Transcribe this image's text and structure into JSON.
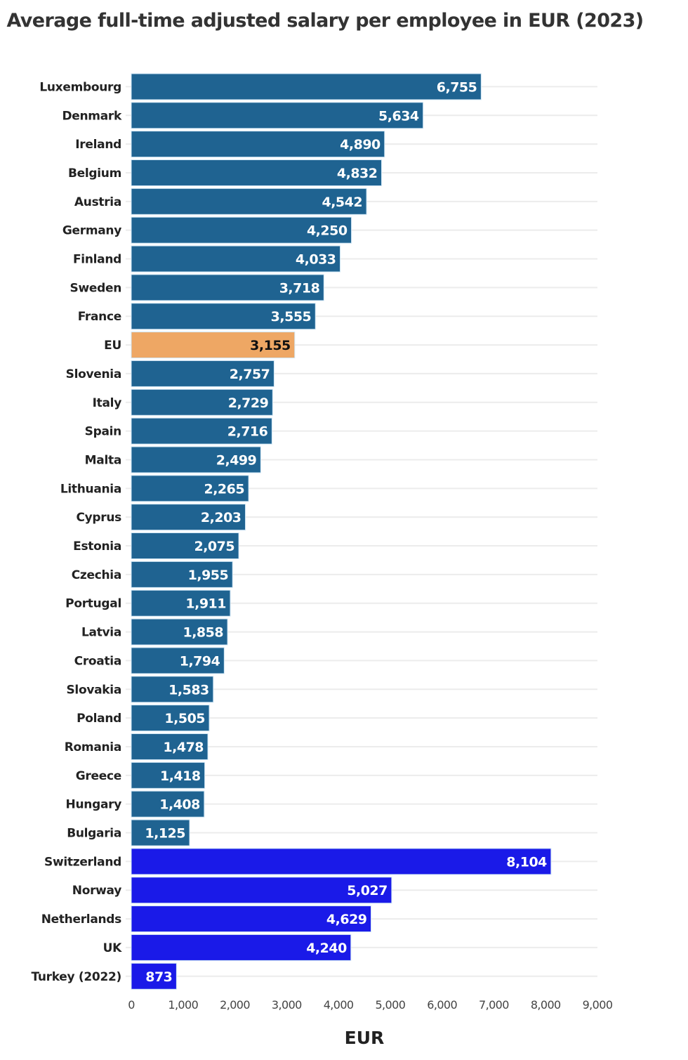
{
  "chart_data": {
    "type": "bar",
    "orientation": "horizontal",
    "title": "Average full-time adjusted salary per employee in EUR (2023)",
    "xlabel": "EUR",
    "ylabel": "",
    "xlim": [
      0,
      9000
    ],
    "xticks": [
      0,
      1000,
      2000,
      3000,
      4000,
      5000,
      6000,
      7000,
      8000,
      9000
    ],
    "xtick_labels": [
      "0",
      "1,000",
      "2,000",
      "3,000",
      "4,000",
      "5,000",
      "6,000",
      "7,000",
      "8,000",
      "9,000"
    ],
    "grid": "vertical-off horizontal-row-lines",
    "legend": "none",
    "colors": {
      "eu_member": "#1f6391",
      "eu_average": "#eea764",
      "non_eu": "#1a1ae8"
    },
    "categories": [
      "Luxembourg",
      "Denmark",
      "Ireland",
      "Belgium",
      "Austria",
      "Germany",
      "Finland",
      "Sweden",
      "France",
      "EU",
      "Slovenia",
      "Italy",
      "Spain",
      "Malta",
      "Lithuania",
      "Cyprus",
      "Estonia",
      "Czechia",
      "Portugal",
      "Latvia",
      "Croatia",
      "Slovakia",
      "Poland",
      "Romania",
      "Greece",
      "Hungary",
      "Bulgaria",
      "Switzerland",
      "Norway",
      "Netherlands",
      "UK",
      "Turkey (2022)"
    ],
    "values": [
      6755,
      5634,
      4890,
      4832,
      4542,
      4250,
      4033,
      3718,
      3555,
      3155,
      2757,
      2729,
      2716,
      2499,
      2265,
      2203,
      2075,
      1955,
      1911,
      1858,
      1794,
      1583,
      1505,
      1478,
      1418,
      1408,
      1125,
      8104,
      5027,
      4629,
      4240,
      873
    ],
    "value_labels": [
      "6,755",
      "5,634",
      "4,890",
      "4,832",
      "4,542",
      "4,250",
      "4,033",
      "3,718",
      "3,555",
      "3,155",
      "2,757",
      "2,729",
      "2,716",
      "2,499",
      "2,265",
      "2,203",
      "2,075",
      "1,955",
      "1,911",
      "1,858",
      "1,794",
      "1,583",
      "1,505",
      "1,478",
      "1,418",
      "1,408",
      "1,125",
      "8,104",
      "5,027",
      "4,629",
      "4,240",
      "873"
    ],
    "groups": [
      "eu_member",
      "eu_member",
      "eu_member",
      "eu_member",
      "eu_member",
      "eu_member",
      "eu_member",
      "eu_member",
      "eu_member",
      "eu_average",
      "eu_member",
      "eu_member",
      "eu_member",
      "eu_member",
      "eu_member",
      "eu_member",
      "eu_member",
      "eu_member",
      "eu_member",
      "eu_member",
      "eu_member",
      "eu_member",
      "eu_member",
      "eu_member",
      "eu_member",
      "eu_member",
      "eu_member",
      "non_eu",
      "non_eu",
      "non_eu",
      "non_eu",
      "non_eu"
    ]
  }
}
